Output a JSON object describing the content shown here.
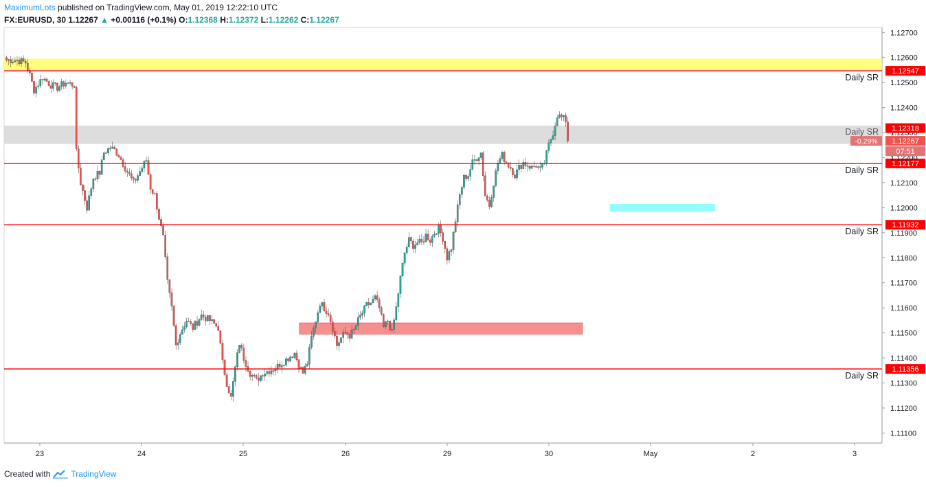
{
  "header": {
    "author": "MaximumLots",
    "published_text": "published on TradingView.com, May 01, 2019 12:22:10 UTC",
    "symbol": "FX:EURUSD, 30",
    "last": "1.12267",
    "change": "+0.00116 (+0.1%)",
    "o_label": "O:",
    "o": "1.12368",
    "h_label": "H:",
    "h": "1.12372",
    "l_label": "L:",
    "l": "1.12262",
    "c_label": "C:",
    "c": "1.12267"
  },
  "footer": {
    "created_with": "Created with",
    "brand": "TradingView"
  },
  "colors": {
    "up": "#26a69a",
    "down": "#ef5350",
    "sr_line": "#ff0000",
    "yellow_zone": "#ffff66",
    "gray_zone": "#d9d9d9",
    "red_zone": "#f77b7b",
    "cyan_zone": "#7ffbff"
  },
  "chart_data": {
    "type": "candlestick",
    "symbol": "FX:EURUSD",
    "interval": "30",
    "y_range": [
      1.1106,
      1.1272
    ],
    "y_ticks": [
      "1.12700",
      "1.12600",
      "1.12500",
      "1.12400",
      "1.12300",
      "1.12200",
      "1.12100",
      "1.12000",
      "1.11900",
      "1.11800",
      "1.11700",
      "1.11600",
      "1.11500",
      "1.11400",
      "1.11300",
      "1.11200",
      "1.11100"
    ],
    "x_ticks": [
      "23",
      "24",
      "25",
      "26",
      "29",
      "30",
      "May",
      "2",
      "3"
    ],
    "sr_levels": [
      {
        "price": 1.12547,
        "label": "1.12547",
        "annotation": "Daily SR"
      },
      {
        "price": 1.12177,
        "label": "1.12177",
        "annotation": "Daily SR"
      },
      {
        "price": 1.11932,
        "label": "1.11932",
        "annotation": "Daily SR"
      },
      {
        "price": 1.11356,
        "label": "1.11356",
        "annotation": "Daily SR"
      }
    ],
    "gray_zone_annotation": "Daily SR",
    "zones": [
      {
        "name": "yellow",
        "from_day": "23",
        "to_day": "edge",
        "low": 1.1255,
        "high": 1.12595
      },
      {
        "name": "gray",
        "from_day": "23",
        "to_day": "edge",
        "low": 1.12255,
        "high": 1.12328
      },
      {
        "name": "red",
        "from_day": "25",
        "to_day": "30",
        "low": 1.11495,
        "high": 1.1154
      },
      {
        "name": "cyan",
        "from_day": "May",
        "to_day": "May",
        "low": 1.11985,
        "high": 1.12015
      }
    ],
    "price_labels": [
      {
        "text": "1.12318",
        "price": 1.12318,
        "kind": "line"
      },
      {
        "text": "1.12267",
        "price": 1.12267,
        "kind": "last"
      }
    ],
    "change_pct_label": "-0.29%",
    "countdown": "07:51",
    "close_path": [
      [
        0,
        1.1259
      ],
      [
        5,
        1.1259
      ],
      [
        9,
        1.1258
      ],
      [
        11,
        1.1253
      ],
      [
        13,
        1.1247
      ],
      [
        17,
        1.1252
      ],
      [
        21,
        1.1249
      ],
      [
        24,
        1.1248
      ],
      [
        28,
        1.125
      ],
      [
        32,
        1.1249
      ],
      [
        33,
        1.1222
      ],
      [
        35,
        1.121
      ],
      [
        38,
        1.12
      ],
      [
        41,
        1.1212
      ],
      [
        44,
        1.1214
      ],
      [
        46,
        1.1222
      ],
      [
        49,
        1.1224
      ],
      [
        51,
        1.1223
      ],
      [
        53,
        1.1221
      ],
      [
        56,
        1.1216
      ],
      [
        60,
        1.121
      ],
      [
        64,
        1.1216
      ],
      [
        66,
        1.1219
      ],
      [
        68,
        1.1208
      ],
      [
        70,
        1.1205
      ],
      [
        72,
        1.1196
      ],
      [
        74,
        1.1188
      ],
      [
        76,
        1.117
      ],
      [
        78,
        1.116
      ],
      [
        80,
        1.1145
      ],
      [
        82,
        1.115
      ],
      [
        85,
        1.1155
      ],
      [
        88,
        1.1152
      ],
      [
        92,
        1.1157
      ],
      [
        96,
        1.1155
      ],
      [
        100,
        1.1152
      ],
      [
        102,
        1.1138
      ],
      [
        104,
        1.113
      ],
      [
        106,
        1.1124
      ],
      [
        108,
        1.1136
      ],
      [
        110,
        1.1146
      ],
      [
        112,
        1.114
      ],
      [
        115,
        1.1134
      ],
      [
        118,
        1.1131
      ],
      [
        121,
        1.1134
      ],
      [
        124,
        1.1135
      ],
      [
        127,
        1.1136
      ],
      [
        130,
        1.1138
      ],
      [
        133,
        1.114
      ],
      [
        136,
        1.1142
      ],
      [
        138,
        1.1137
      ],
      [
        140,
        1.1134
      ],
      [
        142,
        1.1138
      ],
      [
        144,
        1.1148
      ],
      [
        146,
        1.1155
      ],
      [
        148,
        1.1162
      ],
      [
        150,
        1.116
      ],
      [
        152,
        1.1158
      ],
      [
        154,
        1.1152
      ],
      [
        156,
        1.1145
      ],
      [
        158,
        1.1148
      ],
      [
        160,
        1.115
      ],
      [
        162,
        1.1149
      ],
      [
        164,
        1.1151
      ],
      [
        166,
        1.1155
      ],
      [
        168,
        1.1158
      ],
      [
        170,
        1.1161
      ],
      [
        172,
        1.1162
      ],
      [
        174,
        1.1164
      ],
      [
        176,
        1.116
      ],
      [
        178,
        1.1152
      ],
      [
        180,
        1.1155
      ],
      [
        182,
        1.115
      ],
      [
        184,
        1.116
      ],
      [
        186,
        1.1172
      ],
      [
        188,
        1.1182
      ],
      [
        190,
        1.1187
      ],
      [
        192,
        1.1185
      ],
      [
        194,
        1.1186
      ],
      [
        196,
        1.1186
      ],
      [
        198,
        1.1189
      ],
      [
        200,
        1.1187
      ],
      [
        202,
        1.119
      ],
      [
        204,
        1.1192
      ],
      [
        206,
        1.1188
      ],
      [
        208,
        1.118
      ],
      [
        210,
        1.1184
      ],
      [
        212,
        1.1195
      ],
      [
        214,
        1.1205
      ],
      [
        216,
        1.1212
      ],
      [
        218,
        1.1213
      ],
      [
        220,
        1.1218
      ],
      [
        222,
        1.122
      ],
      [
        224,
        1.1222
      ],
      [
        226,
        1.1205
      ],
      [
        228,
        1.1201
      ],
      [
        230,
        1.121
      ],
      [
        232,
        1.1218
      ],
      [
        234,
        1.1221
      ],
      [
        236,
        1.1218
      ],
      [
        238,
        1.1216
      ],
      [
        240,
        1.1213
      ],
      [
        242,
        1.1216
      ],
      [
        244,
        1.1218
      ],
      [
        246,
        1.1217
      ],
      [
        248,
        1.1216
      ],
      [
        250,
        1.1217
      ],
      [
        252,
        1.1215
      ],
      [
        254,
        1.1218
      ],
      [
        256,
        1.1225
      ],
      [
        258,
        1.123
      ],
      [
        260,
        1.1237
      ],
      [
        262,
        1.1236
      ],
      [
        264,
        1.1235
      ],
      [
        265,
        1.12267
      ]
    ]
  }
}
